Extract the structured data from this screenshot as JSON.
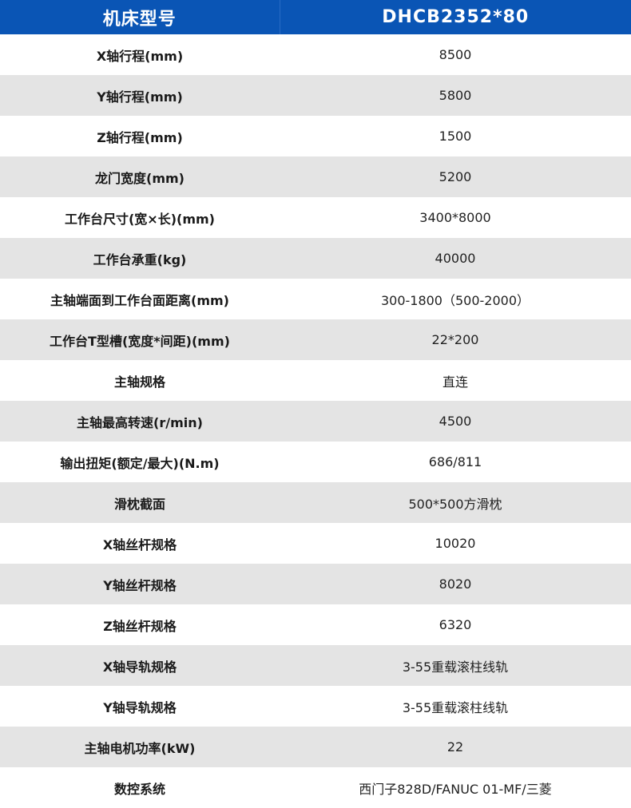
{
  "header": {
    "label": "机床型号",
    "value": "DHCB2352*80"
  },
  "colors": {
    "header_bg": "#0a55b5",
    "stripe": "#e4e4e4"
  },
  "rows": [
    {
      "label": "X轴行程(mm)",
      "value": "8500"
    },
    {
      "label": "Y轴行程(mm)",
      "value": "5800"
    },
    {
      "label": "Z轴行程(mm)",
      "value": "1500"
    },
    {
      "label": "龙门宽度(mm)",
      "value": "5200"
    },
    {
      "label": "工作台尺寸(宽×长)(mm)",
      "value": "3400*8000"
    },
    {
      "label": "工作台承重(kg)",
      "value": "40000"
    },
    {
      "label": "主轴端面到工作台面距离(mm)",
      "value": "300-1800（500-2000）"
    },
    {
      "label": "工作台T型槽(宽度*间距)(mm)",
      "value": "22*200"
    },
    {
      "label": "主轴规格",
      "value": "直连"
    },
    {
      "label": "主轴最高转速(r/min)",
      "value": "4500"
    },
    {
      "label": "输出扭矩(额定/最大)(N.m)",
      "value": "686/811"
    },
    {
      "label": "滑枕截面",
      "value": "500*500方滑枕"
    },
    {
      "label": "X轴丝杆规格",
      "value": "10020"
    },
    {
      "label": "Y轴丝杆规格",
      "value": "8020"
    },
    {
      "label": "Z轴丝杆规格",
      "value": "6320"
    },
    {
      "label": "X轴导轨规格",
      "value": "3-55重载滚柱线轨"
    },
    {
      "label": "Y轴导轨规格",
      "value": "3-55重载滚柱线轨"
    },
    {
      "label": "主轴电机功率(kW)",
      "value": "22"
    },
    {
      "label": "数控系统",
      "value": "西门子828D/FANUC 01-MF/三菱"
    }
  ]
}
